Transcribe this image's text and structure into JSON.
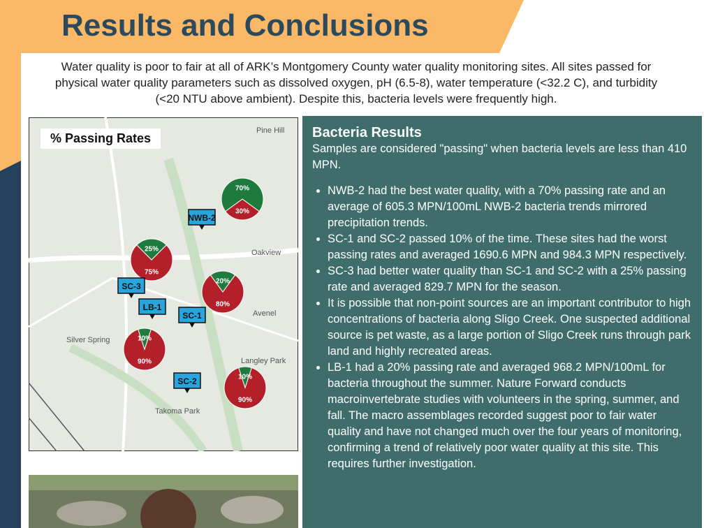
{
  "header": {
    "title": "Results and Conclusions"
  },
  "intro": "Water quality is poor to fair at all of ARK’s Montgomery County water quality monitoring sites. All sites passed for physical water quality parameters such as dissolved oxygen, pH (6.5-8), water temperature (<32.2 C), and turbidity (<20 NTU above ambient). Despite this, bacteria levels were frequently high.",
  "map": {
    "title": "% Passing Rates",
    "places": [
      "Pine Hill",
      "Oakview",
      "Avenel",
      "Silver Spring",
      "Langley Park",
      "Takoma Park"
    ],
    "sites": [
      {
        "name": "NWB-2",
        "values": [
          30,
          70
        ],
        "value_labels": [
          "30%",
          "70%"
        ]
      },
      {
        "name": "SC-3",
        "values": [
          75,
          25
        ],
        "value_labels": [
          "75%",
          "25%"
        ]
      },
      {
        "name": "LB-1",
        "values": [
          80,
          20
        ],
        "value_labels": [
          "80%",
          "20%"
        ]
      },
      {
        "name": "SC-1",
        "values": [
          90,
          10
        ],
        "value_labels": [
          "90%",
          "10%"
        ]
      },
      {
        "name": "SC-2",
        "values": [
          90,
          10
        ],
        "value_labels": [
          "90%",
          "10%"
        ]
      }
    ]
  },
  "results": {
    "title": "Bacteria Results",
    "lead": "Samples are considered \"passing\" when bacteria levels are less than 410 MPN.",
    "bullets": [
      "NWB-2 had the best water quality, with a 70% passing rate and an average of 605.3 MPN/100mL NWB-2 bacteria trends mirrored precipitation trends.",
      "SC-1 and SC-2 passed 10% of the time. These sites had the worst passing rates and averaged 1690.6 MPN and 984.3 MPN respectively.",
      "SC-3 had better water quality than SC-1 and SC-2 with a 25% passing rate and averaged 829.7 MPN for the season.",
      "It is possible that non-point sources are an important contributor to high concentrations of bacteria along Sligo Creek. One suspected additional source is pet waste, as a large portion of Sligo Creek runs through park land and highly recreated areas.",
      "LB-1 had a 20% passing rate and averaged 968.2 MPN/100mL for bacteria throughout the summer. Nature Forward conducts macroinvertebrate studies with volunteers in the spring, summer, and fall. The macro assemblages recorded suggest poor to fair water quality and have not changed much over the four years of monitoring, confirming a trend of relatively poor water quality at this site. This requires further investigation."
    ]
  }
}
